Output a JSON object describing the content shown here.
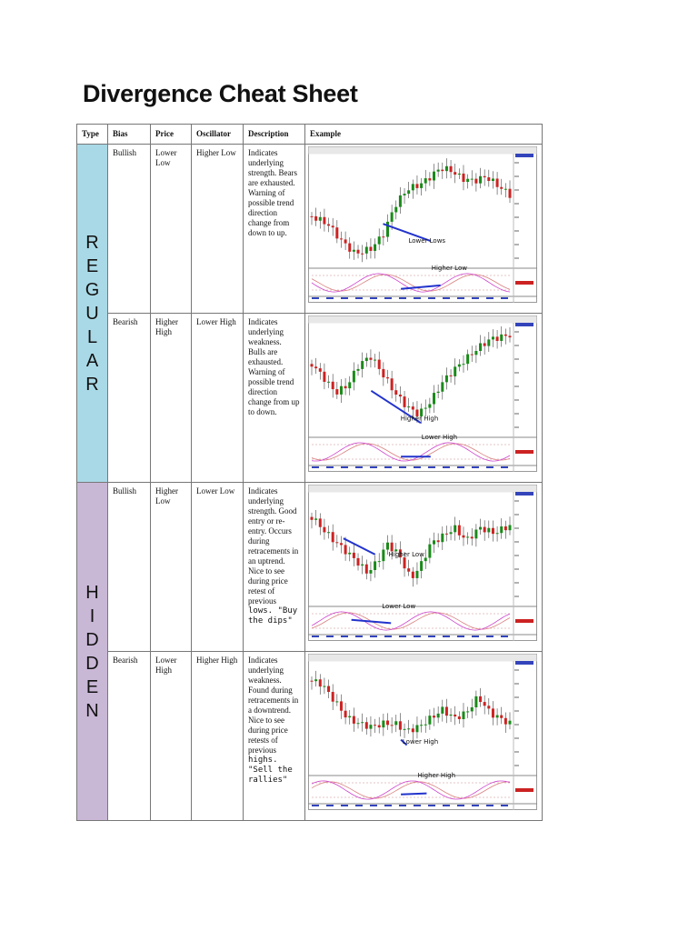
{
  "title": "Divergence Cheat Sheet",
  "headers": {
    "type": "Type",
    "bias": "Bias",
    "price": "Price",
    "oscillator": "Oscillator",
    "description": "Description",
    "example": "Example"
  },
  "groups": {
    "regular": {
      "letters": [
        "R",
        "E",
        "G",
        "U",
        "L",
        "A",
        "R"
      ]
    },
    "hidden": {
      "letters": [
        "H",
        "I",
        "D",
        "D",
        "E",
        "N"
      ]
    }
  },
  "rows": [
    {
      "bias": "Bullish",
      "price": "Lower Low",
      "oscillator": "Higher Low",
      "description": "Indicates underlying strength. Bears are exhausted. Warning of possible trend direction change from down to up.",
      "description_tail": "",
      "chart": {
        "price_label": "Lower Lows",
        "osc_label": "Higher Low",
        "price_line_color": "#2233cc"
      }
    },
    {
      "bias": "Bearish",
      "price": "Higher High",
      "oscillator": "Lower High",
      "description": "Indicates underlying weakness. Bulls are exhausted. Warning of possible trend direction change from up to down.",
      "description_tail": "",
      "chart": {
        "price_label": "Higher High",
        "osc_label": "Lower High",
        "price_line_color": "#2233cc"
      }
    },
    {
      "bias": "Bullish",
      "price": "Higher Low",
      "oscillator": "Lower Low",
      "description": "Indicates underlying strength. Good entry or re-entry. Occurs during retracements in an uptrend. Nice to see during price retest of previous",
      "description_tail": "lows. \"Buy the dips\"",
      "chart": {
        "price_label": "Higher Low",
        "osc_label": "Lower Low",
        "price_line_color": "#2233cc"
      }
    },
    {
      "bias": "Bearish",
      "price": "Lower High",
      "oscillator": "Higher High",
      "description": "Indicates underlying weakness. Found during retracements in a downtrend. Nice to see during price retests of previous",
      "description_tail": "highs. \"Sell the rallies\"",
      "chart": {
        "price_label": "Lower High",
        "osc_label": "Higher High",
        "price_line_color": "#2233cc"
      }
    }
  ],
  "colors": {
    "bull_candle": "#1a8a1a",
    "bear_candle": "#cc2222",
    "osc_k": "#cc44cc",
    "osc_d": "#d98080",
    "regular_band": "#a9d9e6",
    "hidden_band": "#c9b7d6"
  }
}
